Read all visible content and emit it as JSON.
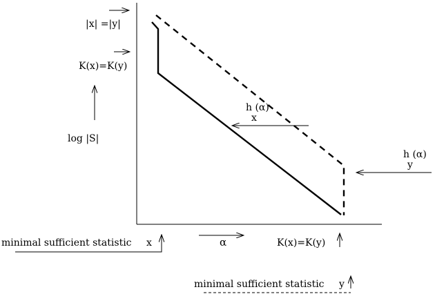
{
  "labels": {
    "abs_x_eq_y": "|x| =|y|",
    "kx_eq_ky_left": "K(x)=K(y)",
    "log_s": "log |S|",
    "hx_h": "h (α)",
    "hx_sub": "x",
    "hy_h": "h (α)",
    "hy_sub": "y",
    "mss_x": "minimal sufficient statistic",
    "x_mark": "x",
    "alpha": "α",
    "kx_eq_ky_bottom": "K(x)=K(y)",
    "mss_y": "minimal sufficient statistic",
    "y_mark": "y"
  },
  "colors": {
    "ink": "#000000",
    "background": "#ffffff"
  },
  "line_styles": {
    "h_x": "solid",
    "h_y": "dashed",
    "mss_x_underline": "solid",
    "mss_y_underline": "dashed"
  }
}
